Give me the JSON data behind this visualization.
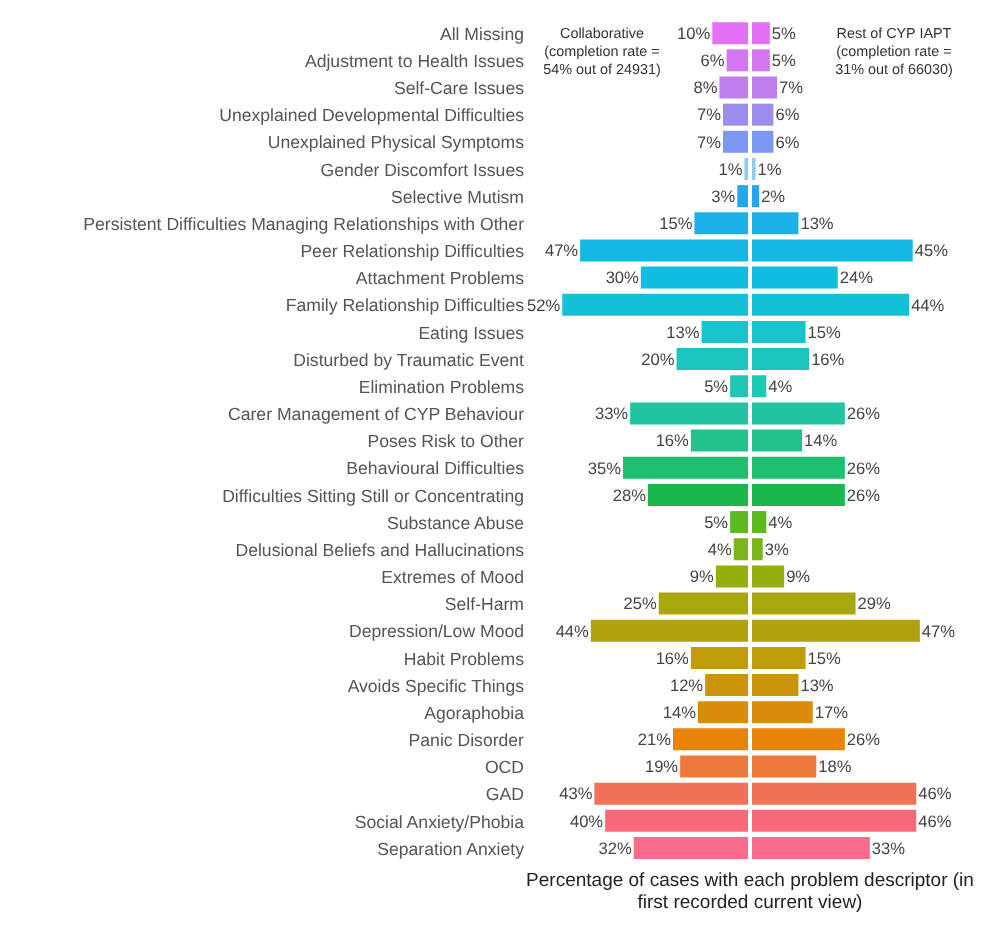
{
  "chart_data": [
    {
      "type": "bar",
      "orientation": "horizontal",
      "xlabel": "Percentage of cases with each problem descriptor (in first recorded current view)",
      "tick_labels": "y",
      "categories": [
        "All Missing",
        "Adjustment to Health Issues",
        "Self-Care Issues",
        "Unexplained Developmental Difficulties",
        "Unexplained Physical Symptoms",
        "Gender Discomfort Issues",
        "Selective Mutism",
        "Persistent Difficulties Managing Relationships with Other",
        "Peer Relationship Difficulties",
        "Attachment Problems",
        "Family Relationship Difficulties",
        "Eating Issues",
        "Disturbed by Traumatic Event",
        "Elimination Problems",
        "Carer Management of CYP Behaviour",
        "Poses Risk to Other",
        "Behavioural Difficulties",
        "Difficulties Sitting Still or Concentrating",
        "Substance Abuse",
        "Delusional Beliefs and Hallucinations",
        "Extremes of Mood",
        "Self-Harm",
        "Depression/Low Mood",
        "Habit Problems",
        "Avoids Specific Things",
        "Agoraphobia",
        "Panic Disorder",
        "OCD",
        "GAD",
        "Social Anxiety/Phobia",
        "Separation Anxiety"
      ],
      "colors": [
        "#e56ff6",
        "#d478f2",
        "#c07ef0",
        "#9b8cf0",
        "#7d98f4",
        "#8ccaf0",
        "#22a8e8",
        "#1ab0e8",
        "#14b8e4",
        "#10bce0",
        "#12c0d8",
        "#18c4cc",
        "#1cc4c0",
        "#1ec8b4",
        "#20c4a0",
        "#22c28c",
        "#1fbf70",
        "#1ab84c",
        "#5cba20",
        "#7cb41c",
        "#94ae10",
        "#a8a80c",
        "#b0a20a",
        "#c09c08",
        "#cc9408",
        "#d88c08",
        "#e68308",
        "#ec7a3a",
        "#f07058",
        "#f86878",
        "#fb6a8a"
      ],
      "series": [
        {
          "name": "Collaborative (completion rate = 54% out of 24931)",
          "values": [
            10,
            6,
            8,
            7,
            7,
            1,
            3,
            15,
            47,
            30,
            52,
            13,
            20,
            5,
            33,
            16,
            35,
            28,
            5,
            4,
            9,
            25,
            44,
            16,
            12,
            14,
            21,
            19,
            43,
            40,
            32
          ],
          "value_labels": [
            "10%",
            "6%",
            "8%",
            "7%",
            "7%",
            "1%",
            "3%",
            "15%",
            "47%",
            "30%",
            "52%",
            "13%",
            "20%",
            "5%",
            "33%",
            "16%",
            "35%",
            "28%",
            "5%",
            "4%",
            "9%",
            "25%",
            "44%",
            "16%",
            "12%",
            "14%",
            "21%",
            "19%",
            "43%",
            "40%",
            "32%"
          ]
        }
      ]
    },
    {
      "type": "bar",
      "orientation": "horizontal",
      "tick_labels": false,
      "categories": [
        "All Missing",
        "Adjustment to Health Issues",
        "Self-Care Issues",
        "Unexplained Developmental Difficulties",
        "Unexplained Physical Symptoms",
        "Gender Discomfort Issues",
        "Selective Mutism",
        "Persistent Difficulties Managing Relationships with Other",
        "Peer Relationship Difficulties",
        "Attachment Problems",
        "Family Relationship Difficulties",
        "Eating Issues",
        "Disturbed by Traumatic Event",
        "Elimination Problems",
        "Carer Management of CYP Behaviour",
        "Poses Risk to Other",
        "Behavioural Difficulties",
        "Difficulties Sitting Still or Concentrating",
        "Substance Abuse",
        "Delusional Beliefs and Hallucinations",
        "Extremes of Mood",
        "Self-Harm",
        "Depression/Low Mood",
        "Habit Problems",
        "Avoids Specific Things",
        "Agoraphobia",
        "Panic Disorder",
        "OCD",
        "GAD",
        "Social Anxiety/Phobia",
        "Separation Anxiety"
      ],
      "colors": [
        "#e56ff6",
        "#d478f2",
        "#c07ef0",
        "#9b8cf0",
        "#7d98f4",
        "#8ccaf0",
        "#22a8e8",
        "#1ab0e8",
        "#14b8e4",
        "#10bce0",
        "#12c0d8",
        "#18c4cc",
        "#1cc4c0",
        "#1ec8b4",
        "#20c4a0",
        "#22c28c",
        "#1fbf70",
        "#1ab84c",
        "#5cba20",
        "#7cb41c",
        "#94ae10",
        "#a8a80c",
        "#b0a20a",
        "#c09c08",
        "#cc9408",
        "#d88c08",
        "#e68308",
        "#ec7a3a",
        "#f07058",
        "#f86878",
        "#fb6a8a"
      ],
      "series": [
        {
          "name": "Rest of CYP IAPT (completion rate = 31% out of 66030)",
          "values": [
            5,
            5,
            7,
            6,
            6,
            1,
            2,
            13,
            45,
            24,
            44,
            15,
            16,
            4,
            26,
            14,
            26,
            26,
            4,
            3,
            9,
            29,
            47,
            15,
            13,
            17,
            26,
            18,
            46,
            46,
            33
          ],
          "value_labels": [
            "5%",
            "5%",
            "7%",
            "6%",
            "6%",
            "1%",
            "2%",
            "13%",
            "45%",
            "24%",
            "44%",
            "15%",
            "16%",
            "4%",
            "26%",
            "14%",
            "26%",
            "26%",
            "4%",
            "3%",
            "9%",
            "29%",
            "47%",
            "15%",
            "13%",
            "17%",
            "26%",
            "18%",
            "46%",
            "46%",
            "33%"
          ]
        }
      ]
    }
  ]
}
